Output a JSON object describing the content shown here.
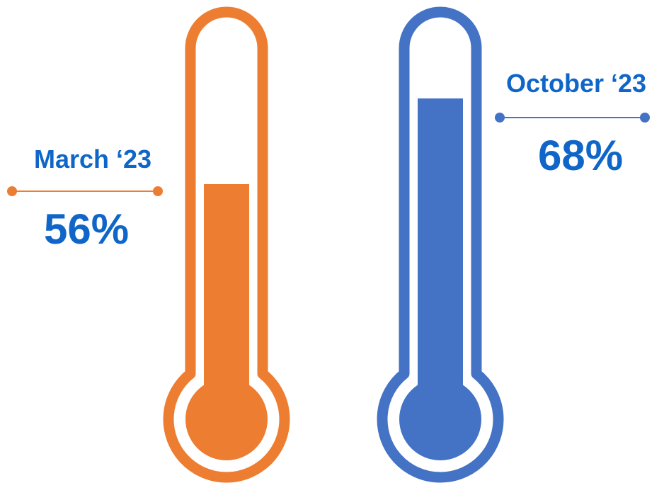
{
  "chart_data": {
    "type": "bar",
    "categories": [
      "March ‘23",
      "October ‘23"
    ],
    "values": [
      56,
      68
    ],
    "value_labels": [
      "56%",
      "68%"
    ],
    "ylim": [
      0,
      100
    ],
    "unit": "%",
    "series_colors": [
      "#ED7D31",
      "#4472C4"
    ],
    "label_color": "#0F66C8"
  }
}
